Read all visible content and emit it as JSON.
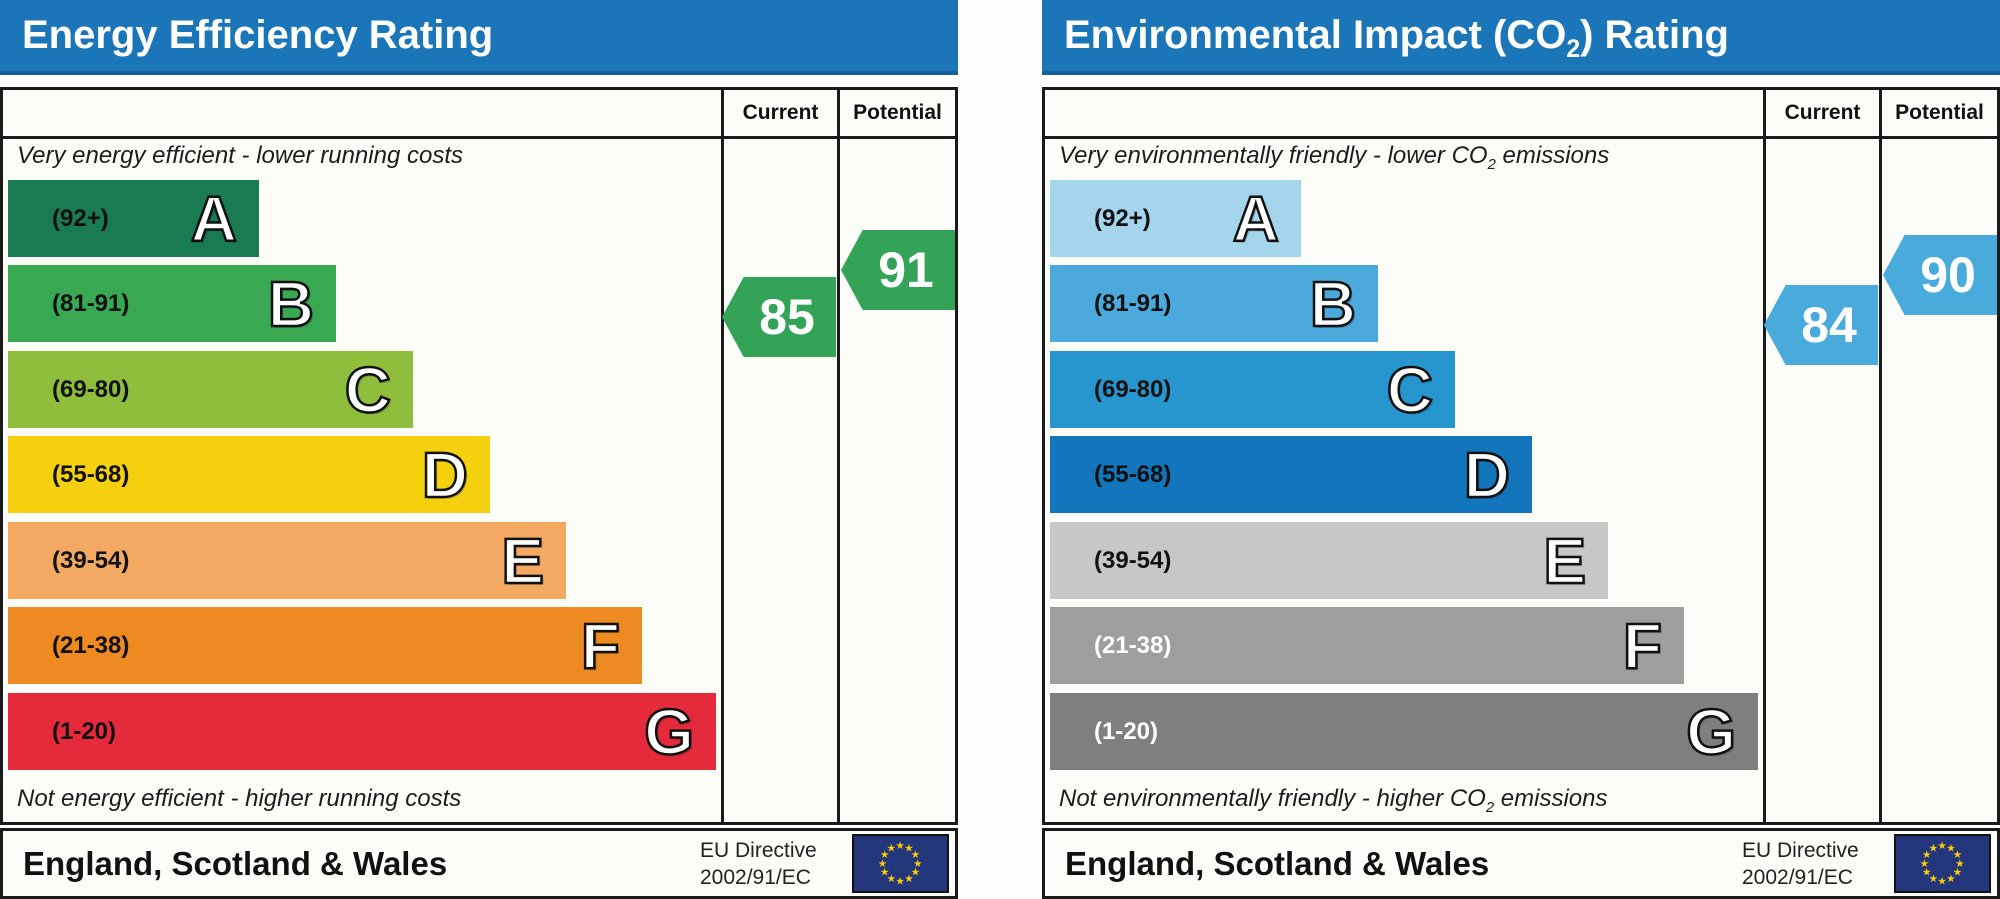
{
  "panels": [
    {
      "title": {
        "prefix": "Energy Efficiency Rating",
        "sub": "",
        "suffix": ""
      },
      "columns": {
        "current": "Current",
        "potential": "Potential"
      },
      "top_note": {
        "prefix": "Very energy efficient - lower running costs",
        "sub": "",
        "suffix": ""
      },
      "bottom_note": {
        "prefix": "Not energy efficient - higher running costs",
        "sub": "",
        "suffix": ""
      },
      "bands": [
        {
          "grade": "A",
          "range": "(92+)",
          "color": "#1A7B53",
          "label_color": "#111111"
        },
        {
          "grade": "B",
          "range": "(81-91)",
          "color": "#39A853",
          "label_color": "#111111"
        },
        {
          "grade": "C",
          "range": "(69-80)",
          "color": "#8FBE3D",
          "label_color": "#111111"
        },
        {
          "grade": "D",
          "range": "(55-68)",
          "color": "#F4D00F",
          "label_color": "#111111"
        },
        {
          "grade": "E",
          "range": "(39-54)",
          "color": "#F3A962",
          "label_color": "#111111"
        },
        {
          "grade": "F",
          "range": "(21-38)",
          "color": "#ED8A21",
          "label_color": "#111111"
        },
        {
          "grade": "G",
          "range": "(1-20)",
          "color": "#E52A3B",
          "label_color": "#111111"
        }
      ],
      "current": {
        "value": "85",
        "color": "#33A357"
      },
      "potential": {
        "value": "91",
        "color": "#33A357"
      },
      "footer": {
        "region": "England, Scotland & Wales",
        "directive_line1": "EU Directive",
        "directive_line2": "2002/91/EC"
      }
    },
    {
      "title": {
        "prefix": "Environmental Impact (CO",
        "sub": "2",
        "suffix": ") Rating"
      },
      "columns": {
        "current": "Current",
        "potential": "Potential"
      },
      "top_note": {
        "prefix": "Very environmentally friendly - lower CO",
        "sub": "2",
        "suffix": " emissions"
      },
      "bottom_note": {
        "prefix": "Not environmentally friendly - higher CO",
        "sub": "2",
        "suffix": " emissions"
      },
      "bands": [
        {
          "grade": "A",
          "range": "(92+)",
          "color": "#A5D4ED",
          "label_color": "#111111"
        },
        {
          "grade": "B",
          "range": "(81-91)",
          "color": "#4BAADB",
          "label_color": "#111111"
        },
        {
          "grade": "C",
          "range": "(69-80)",
          "color": "#2795CE",
          "label_color": "#111111"
        },
        {
          "grade": "D",
          "range": "(55-68)",
          "color": "#1375BB",
          "label_color": "#111111"
        },
        {
          "grade": "E",
          "range": "(39-54)",
          "color": "#C7C7C7",
          "label_color": "#111111"
        },
        {
          "grade": "F",
          "range": "(21-38)",
          "color": "#9E9E9E",
          "label_color": "#FFFFFF"
        },
        {
          "grade": "G",
          "range": "(1-20)",
          "color": "#7F7F7F",
          "label_color": "#FFFFFF"
        }
      ],
      "current": {
        "value": "84",
        "color": "#49ABDC"
      },
      "potential": {
        "value": "90",
        "color": "#49ABDC"
      },
      "footer": {
        "region": "England, Scotland & Wales",
        "directive_line1": "EU Directive",
        "directive_line2": "2002/91/EC"
      }
    }
  ],
  "chart_data": [
    {
      "type": "bar",
      "title": "Energy Efficiency Rating",
      "categories": [
        "A",
        "B",
        "C",
        "D",
        "E",
        "F",
        "G"
      ],
      "band_ranges": [
        "92+",
        "81-91",
        "69-80",
        "55-68",
        "39-54",
        "21-38",
        "1-20"
      ],
      "band_colors": [
        "#1A7B53",
        "#39A853",
        "#8FBE3D",
        "#F4D00F",
        "#F3A962",
        "#ED8A21",
        "#E52A3B"
      ],
      "current_rating": 85,
      "potential_rating": 91,
      "current_band": "B",
      "potential_band": "B",
      "scale": [
        1,
        100
      ],
      "top_annotation": "Very energy efficient - lower running costs",
      "bottom_annotation": "Not energy efficient - higher running costs",
      "region": "England, Scotland & Wales",
      "directive": "EU Directive 2002/91/EC",
      "legend_position": "none",
      "grid": false
    },
    {
      "type": "bar",
      "title": "Environmental Impact (CO2) Rating",
      "categories": [
        "A",
        "B",
        "C",
        "D",
        "E",
        "F",
        "G"
      ],
      "band_ranges": [
        "92+",
        "81-91",
        "69-80",
        "55-68",
        "39-54",
        "21-38",
        "1-20"
      ],
      "band_colors": [
        "#A5D4ED",
        "#4BAADB",
        "#2795CE",
        "#1375BB",
        "#C7C7C7",
        "#9E9E9E",
        "#7F7F7F"
      ],
      "current_rating": 84,
      "potential_rating": 90,
      "current_band": "B",
      "potential_band": "B",
      "scale": [
        1,
        100
      ],
      "top_annotation": "Very environmentally friendly - lower CO2 emissions",
      "bottom_annotation": "Not environmentally friendly - higher CO2 emissions",
      "region": "England, Scotland & Wales",
      "directive": "EU Directive 2002/91/EC",
      "legend_position": "none",
      "grid": false
    }
  ]
}
